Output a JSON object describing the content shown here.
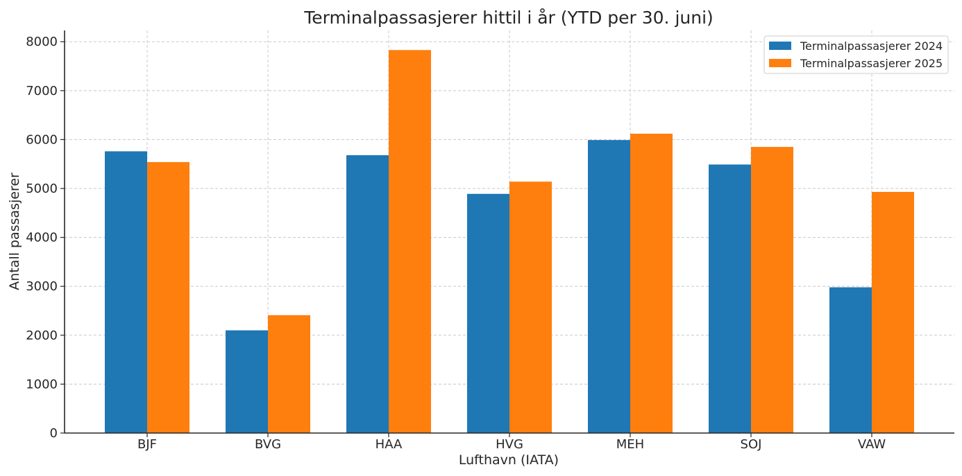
{
  "chart_data": {
    "type": "bar",
    "title": "Terminalpassasjerer hittil i år (YTD per 30. juni)",
    "xlabel": "Lufthavn (IATA)",
    "ylabel": "Antall passasjerer",
    "categories": [
      "BJF",
      "BVG",
      "HAA",
      "HVG",
      "MEH",
      "SOJ",
      "VAW"
    ],
    "series": [
      {
        "name": "Terminalpassasjerer 2024",
        "color": "#1f77b4",
        "values": [
          5760,
          2100,
          5680,
          4890,
          5990,
          5490,
          2980
        ]
      },
      {
        "name": "Terminalpassasjerer 2025",
        "color": "#ff7f0e",
        "values": [
          5540,
          2410,
          7830,
          5140,
          6120,
          5850,
          4930
        ]
      }
    ],
    "ylim": [
      0,
      8230
    ],
    "yticks": [
      0,
      1000,
      2000,
      3000,
      4000,
      5000,
      6000,
      7000,
      8000
    ],
    "grid": true,
    "legend": "top-right"
  }
}
